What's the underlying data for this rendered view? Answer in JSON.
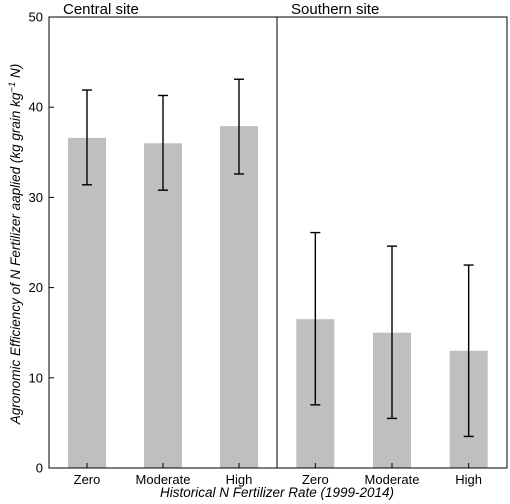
{
  "chart_data": {
    "type": "bar",
    "xlabel": "Historical N Fertilizer Rate (1999-2014)",
    "ylabel_parts": [
      "Agronomic Efficiency of N Fertilizer aaplied (kg grain kg",
      "−1",
      " N)"
    ],
    "ylim": [
      0,
      50
    ],
    "yticks": [
      0,
      10,
      20,
      30,
      40,
      50
    ],
    "categories": [
      "Zero",
      "Moderate",
      "High"
    ],
    "bar_color": "#bfbfbf",
    "error_bar_color": "#000000",
    "grid": false,
    "panels": [
      {
        "title": "Central site",
        "values": [
          36.6,
          36.0,
          37.9
        ],
        "error_low": [
          31.4,
          30.8,
          32.6
        ],
        "error_high": [
          41.9,
          41.3,
          43.1
        ]
      },
      {
        "title": "Southern site",
        "values": [
          16.5,
          15.0,
          13.0
        ],
        "error_low": [
          7.0,
          5.5,
          3.5
        ],
        "error_high": [
          26.1,
          24.6,
          22.5
        ]
      }
    ]
  }
}
